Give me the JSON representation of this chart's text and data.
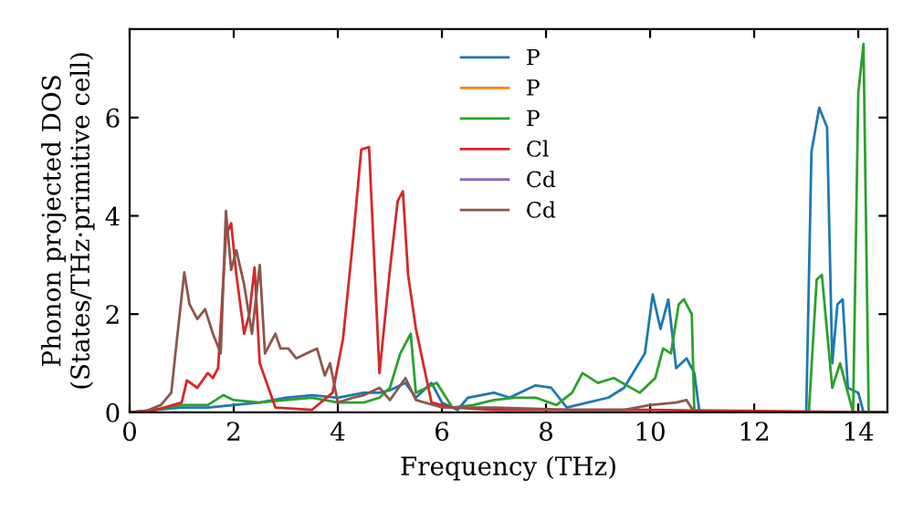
{
  "chart_data": {
    "type": "line",
    "xlabel": "Frequency (THz)",
    "ylabel": "Phonon projected DOS\n(States/THz·primitive cell)",
    "xlim": [
      0,
      14.56
    ],
    "ylim": [
      0,
      7.8
    ],
    "xticks": [
      0,
      2,
      4,
      6,
      8,
      10,
      12,
      14
    ],
    "yticks": [
      0,
      2,
      4,
      6
    ],
    "grid": false,
    "legend": "top",
    "series": [
      {
        "name": "P",
        "color": "#1f77b4",
        "x": [
          0,
          0.5,
          1,
          1.5,
          2,
          2.5,
          3,
          3.5,
          4,
          4.5,
          4.8,
          5,
          5.3,
          5.5,
          5.8,
          6,
          6.3,
          6.5,
          7,
          7.3,
          7.8,
          8.1,
          8.4,
          8.8,
          9.2,
          9.5,
          9.9,
          10.05,
          10.2,
          10.35,
          10.5,
          10.7,
          10.85,
          10.95,
          13,
          13.1,
          13.25,
          13.4,
          13.5,
          13.6,
          13.7,
          13.8,
          14,
          14.1,
          14.5
        ],
        "values": [
          0,
          0.05,
          0.1,
          0.1,
          0.15,
          0.2,
          0.3,
          0.35,
          0.3,
          0.4,
          0.4,
          0.45,
          0.6,
          0.3,
          0.6,
          0.2,
          0.05,
          0.3,
          0.4,
          0.3,
          0.55,
          0.5,
          0.1,
          0.2,
          0.3,
          0.5,
          1.2,
          2.4,
          1.7,
          2.3,
          0.9,
          1.1,
          0.8,
          0,
          0,
          5.3,
          6.2,
          5.8,
          1,
          2.2,
          2.3,
          0.5,
          0.4,
          0,
          0
        ]
      },
      {
        "name": "P",
        "color": "#ff7f0e"
      },
      {
        "name": "P",
        "color": "#2ca02c",
        "x": [
          0,
          0.5,
          1,
          1.5,
          1.8,
          2,
          2.5,
          3,
          3.5,
          4,
          4.5,
          4.8,
          5,
          5.2,
          5.4,
          5.5,
          5.9,
          6.2,
          6.6,
          7,
          7.4,
          7.8,
          8.2,
          8.5,
          8.7,
          9,
          9.3,
          9.8,
          10.1,
          10.25,
          10.4,
          10.55,
          10.65,
          10.8,
          10.85,
          13.05,
          13.2,
          13.3,
          13.5,
          13.65,
          13.75,
          13.9,
          14,
          14.1,
          14.2,
          14.5
        ],
        "values": [
          0,
          0.05,
          0.15,
          0.15,
          0.35,
          0.25,
          0.2,
          0.25,
          0.3,
          0.2,
          0.2,
          0.3,
          0.5,
          1.2,
          1.6,
          0.4,
          0.6,
          0.1,
          0.15,
          0.25,
          0.3,
          0.3,
          0.15,
          0.4,
          0.8,
          0.6,
          0.7,
          0.4,
          0.7,
          1.3,
          1.2,
          2.2,
          2.3,
          2,
          0,
          0,
          2.7,
          2.8,
          0.5,
          1,
          0.6,
          0,
          6.5,
          7.5,
          0,
          0
        ]
      },
      {
        "name": "Cl",
        "color": "#d62728",
        "x": [
          0,
          0.5,
          1,
          1.1,
          1.3,
          1.5,
          1.6,
          1.7,
          1.85,
          1.95,
          2.05,
          2.2,
          2.3,
          2.4,
          2.5,
          2.8,
          3.5,
          3.9,
          4.1,
          4.3,
          4.45,
          4.6,
          4.8,
          5,
          5.15,
          5.25,
          5.35,
          5.5,
          5.8,
          6.2,
          7,
          10,
          14.5
        ],
        "values": [
          0,
          0.05,
          0.2,
          0.65,
          0.5,
          0.8,
          0.7,
          0.9,
          3.6,
          3.85,
          2.8,
          1.6,
          2,
          2.95,
          1,
          0.1,
          0.05,
          0.4,
          1.5,
          3.6,
          5.35,
          5.4,
          0.8,
          2.9,
          4.3,
          4.5,
          2.8,
          1.7,
          0.2,
          0.1,
          0.05,
          0.05,
          0
        ]
      },
      {
        "name": "Cd",
        "color": "#9467bd"
      },
      {
        "name": "Cd",
        "color": "#8c564b",
        "x": [
          0,
          0.3,
          0.6,
          0.8,
          0.9,
          1.05,
          1.15,
          1.3,
          1.45,
          1.6,
          1.75,
          1.85,
          1.95,
          2.05,
          2.2,
          2.35,
          2.5,
          2.6,
          2.8,
          2.9,
          3.05,
          3.2,
          3.4,
          3.6,
          3.75,
          3.85,
          4,
          4.3,
          4.5,
          4.8,
          5,
          5.3,
          5.5,
          6,
          7,
          8.5,
          9.5,
          10,
          10.5,
          10.7,
          10.85,
          13,
          14.5
        ],
        "values": [
          0,
          0.02,
          0.15,
          0.4,
          1.4,
          2.85,
          2.2,
          1.9,
          2.1,
          1.6,
          1.2,
          4.1,
          2.9,
          3.3,
          2.6,
          1.6,
          3,
          1.2,
          1.6,
          1.3,
          1.3,
          1.1,
          1.2,
          1.3,
          0.75,
          1,
          0.2,
          0.3,
          0.35,
          0.5,
          0.25,
          0.7,
          0.25,
          0.1,
          0.1,
          0.05,
          0.05,
          0.15,
          0.2,
          0.25,
          0,
          0,
          0
        ]
      }
    ]
  }
}
